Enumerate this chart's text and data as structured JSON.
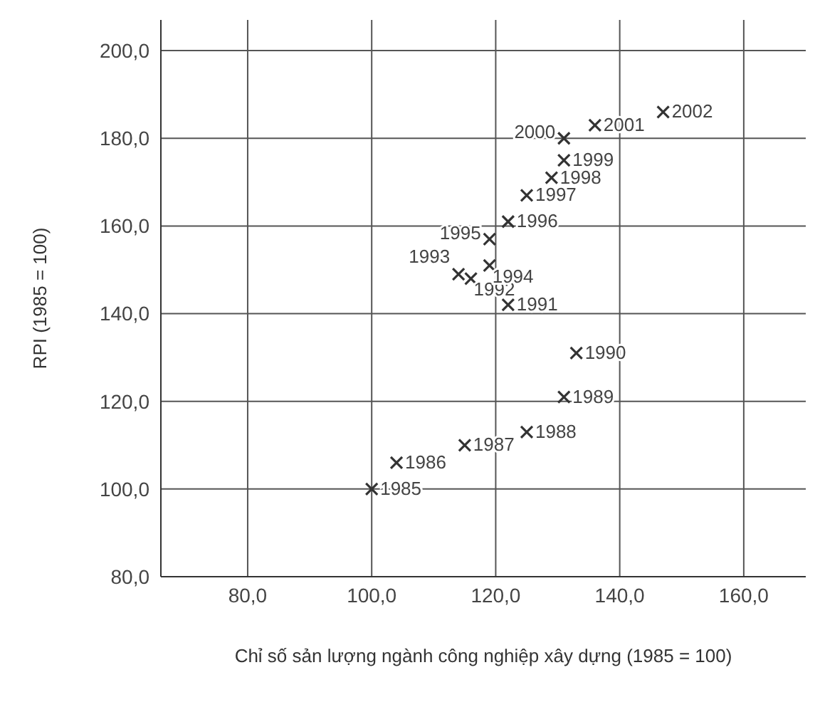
{
  "chart_data": {
    "type": "scatter",
    "xlabel": "Chỉ số sản lượng ngành công nghiệp xây dựng (1985 = 100)",
    "ylabel": "RPI (1985 = 100)",
    "x": [
      100,
      104,
      115,
      125,
      131,
      133,
      122,
      116,
      114,
      119,
      119,
      122,
      125,
      129,
      131,
      131,
      136,
      147
    ],
    "series": [
      {
        "color": "#333333",
        "values": [
          100,
          106,
          110,
          113,
          121,
          131,
          142,
          148,
          149,
          151,
          157,
          161,
          167,
          171,
          175,
          180,
          183,
          186
        ]
      }
    ],
    "marker": "cross",
    "grid": true,
    "xlim": [
      66,
      170
    ],
    "xticks": [
      {
        "value": 80,
        "label": "80,0"
      },
      {
        "value": 100,
        "label": "100,0"
      },
      {
        "value": 120,
        "label": "120,0"
      },
      {
        "value": 140,
        "label": "140,0"
      },
      {
        "value": 160,
        "label": "160,0"
      }
    ],
    "ylim": [
      80,
      207
    ],
    "yticks": [
      {
        "value": 80,
        "label": "80,0"
      },
      {
        "value": 100,
        "label": "100,0"
      },
      {
        "value": 120,
        "label": "120,0"
      },
      {
        "value": 140,
        "label": "140,0"
      },
      {
        "value": 160,
        "label": "160,0"
      },
      {
        "value": 180,
        "label": "180,0"
      },
      {
        "value": 200,
        "label": "200,0"
      }
    ],
    "annotations": [
      {
        "text": "1985",
        "x": 100,
        "y": 100
      },
      {
        "text": "1986",
        "x": 104,
        "y": 106
      },
      {
        "text": "1987",
        "x": 115,
        "y": 110
      },
      {
        "text": "1988",
        "x": 125,
        "y": 113
      },
      {
        "text": "1989",
        "x": 131,
        "y": 121
      },
      {
        "text": "1990",
        "x": 133,
        "y": 131
      },
      {
        "text": "1991",
        "x": 122,
        "y": 142
      },
      {
        "text": "1992",
        "x": 116,
        "y": 148
      },
      {
        "text": "1993",
        "x": 114,
        "y": 149
      },
      {
        "text": "1994",
        "x": 119,
        "y": 151
      },
      {
        "text": "1995",
        "x": 119,
        "y": 157
      },
      {
        "text": "1996",
        "x": 122,
        "y": 161
      },
      {
        "text": "1997",
        "x": 125,
        "y": 167
      },
      {
        "text": "1998",
        "x": 129,
        "y": 171
      },
      {
        "text": "1999",
        "x": 131,
        "y": 175
      },
      {
        "text": "2000",
        "x": 131,
        "y": 180
      },
      {
        "text": "2001",
        "x": 136,
        "y": 183
      },
      {
        "text": "2002",
        "x": 147,
        "y": 186
      }
    ]
  }
}
